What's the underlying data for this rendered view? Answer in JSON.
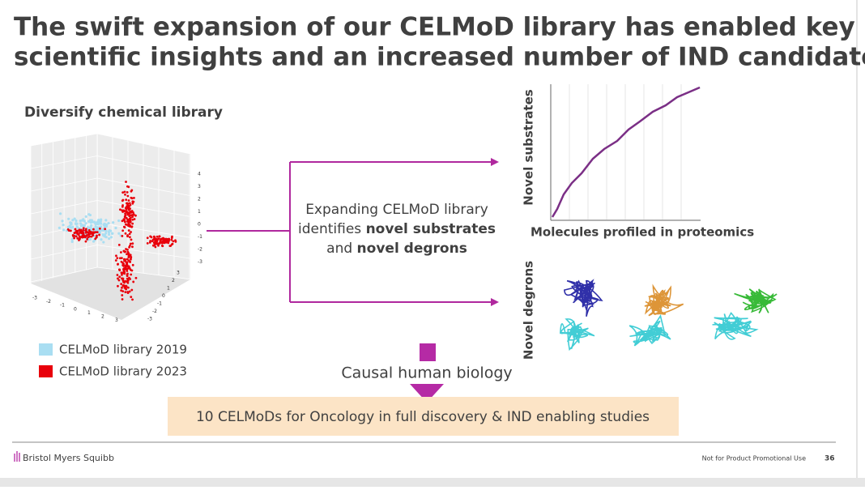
{
  "title": [
    "The swift expansion of our CELMoD library has enabled key",
    "scientific insights and an increased number of IND candidates"
  ],
  "left_panel": {
    "heading": "Diversify chemical library",
    "plot_ticks": {
      "z": [
        "4",
        "3",
        "2",
        "1",
        "0",
        "-1",
        "-2",
        "-3"
      ],
      "x": [
        "-3",
        "-2",
        "-1",
        "0",
        "1",
        "2",
        "3"
      ],
      "y": [
        "3",
        "2",
        "1",
        "0",
        "-1",
        "-2",
        "-3"
      ]
    },
    "legend": [
      {
        "label": "CELMoD library 2019"
      },
      {
        "label": "CELMoD library 2023"
      }
    ]
  },
  "center_text": {
    "line1": "Expanding CELMoD library",
    "line2_plain": "identifies ",
    "line2_bold": "novel substrates",
    "line3_plain": "and ",
    "line3_bold": "novel degrons"
  },
  "right_panel": {
    "chart_y_label": "Novel substrates",
    "chart_x_label": "Molecules profiled in proteomics",
    "degrons_label": "Novel degrons"
  },
  "causal_label": "Causal human biology",
  "callout": "10 CELMoDs for Oncology in full discovery & IND enabling studies",
  "footer": {
    "logo": "Bristol Myers Squibb",
    "disclaimer": "Not for Product Promotional Use",
    "page_number": 36
  }
}
